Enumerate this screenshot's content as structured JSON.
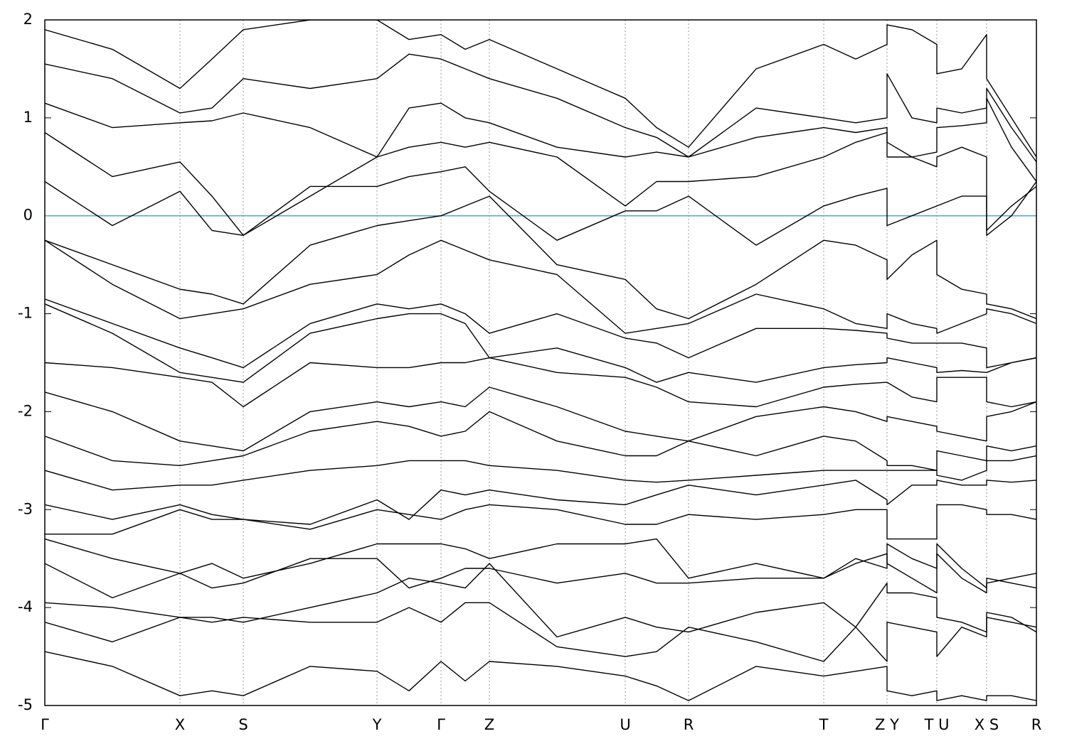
{
  "chart_data": {
    "type": "line",
    "x": [
      0,
      0.095,
      0.19,
      0.235,
      0.279,
      0.373,
      0.467,
      0.512,
      0.557,
      0.591,
      0.625,
      0.72,
      0.816,
      0.86,
      0.905,
      1.0,
      1.095,
      1.14,
      1.184,
      1.184,
      1.219,
      1.254,
      1.254,
      1.289,
      1.324,
      1.324,
      1.359,
      1.394
    ],
    "series": [
      {
        "values": [
          1.9,
          1.7,
          1.3,
          1.6,
          1.9,
          2.0,
          2.0,
          1.8,
          1.85,
          1.7,
          1.8,
          1.5,
          1.2,
          0.9,
          0.7,
          1.5,
          1.75,
          1.6,
          1.75,
          1.95,
          1.9,
          1.75,
          1.45,
          1.5,
          1.85,
          1.4,
          1.0,
          0.6
        ]
      },
      {
        "values": [
          1.55,
          1.4,
          1.05,
          1.1,
          1.4,
          1.3,
          1.4,
          1.65,
          1.6,
          1.5,
          1.4,
          1.2,
          0.9,
          0.8,
          0.6,
          1.1,
          1.0,
          0.95,
          1.0,
          1.45,
          1.0,
          0.95,
          1.1,
          1.05,
          1.1,
          1.3,
          0.9,
          0.55
        ]
      },
      {
        "values": [
          1.15,
          0.9,
          0.95,
          0.97,
          1.05,
          0.9,
          0.6,
          1.1,
          1.15,
          1.0,
          0.95,
          0.7,
          0.6,
          0.65,
          0.6,
          0.8,
          0.9,
          0.85,
          0.9,
          0.75,
          0.6,
          0.65,
          0.9,
          0.92,
          0.95,
          1.2,
          0.7,
          0.35
        ]
      },
      {
        "values": [
          0.85,
          0.4,
          0.55,
          0.2,
          -0.2,
          0.2,
          0.6,
          0.7,
          0.75,
          0.7,
          0.75,
          0.6,
          0.1,
          0.35,
          0.35,
          0.4,
          0.6,
          0.75,
          0.85,
          0.6,
          0.6,
          0.5,
          0.6,
          0.7,
          0.6,
          -0.15,
          0.1,
          0.3
        ]
      },
      {
        "values": [
          0.35,
          -0.1,
          0.25,
          -0.15,
          -0.2,
          0.3,
          0.3,
          0.4,
          0.45,
          0.5,
          0.25,
          -0.25,
          0.05,
          0.05,
          0.2,
          -0.3,
          0.1,
          0.2,
          0.28,
          -0.1,
          0.0,
          0.1,
          0.1,
          0.2,
          0.2,
          -0.2,
          0.0,
          0.35
        ]
      },
      {
        "values": [
          -0.25,
          -0.5,
          -0.75,
          -0.8,
          -0.9,
          -0.3,
          -0.1,
          -0.05,
          0.0,
          0.1,
          0.2,
          -0.5,
          -0.65,
          -0.95,
          -1.05,
          -0.7,
          -0.25,
          -0.3,
          -0.45,
          -0.65,
          -0.4,
          -0.25,
          -0.6,
          -0.75,
          -0.8,
          -0.9,
          -0.95,
          -1.05
        ]
      },
      {
        "values": [
          -0.25,
          -0.7,
          -1.05,
          -1.0,
          -0.95,
          -0.7,
          -0.6,
          -0.4,
          -0.25,
          -0.35,
          -0.45,
          -0.6,
          -1.2,
          -1.15,
          -1.1,
          -0.8,
          -0.95,
          -1.1,
          -1.15,
          -1.0,
          -1.1,
          -1.15,
          -1.2,
          -1.1,
          -1.0,
          -0.95,
          -1.0,
          -1.1
        ]
      },
      {
        "values": [
          -0.85,
          -1.1,
          -1.35,
          -1.45,
          -1.55,
          -1.1,
          -0.9,
          -0.95,
          -0.9,
          -1.0,
          -1.2,
          -1.0,
          -1.25,
          -1.3,
          -1.45,
          -1.15,
          -1.15,
          -1.17,
          -1.2,
          -1.25,
          -1.3,
          -1.3,
          -1.3,
          -1.3,
          -1.35,
          -1.55,
          -1.5,
          -1.45
        ]
      },
      {
        "values": [
          -0.9,
          -1.2,
          -1.6,
          -1.65,
          -1.7,
          -1.2,
          -1.05,
          -1.0,
          -1.0,
          -1.1,
          -1.45,
          -1.35,
          -1.55,
          -1.7,
          -1.6,
          -1.7,
          -1.55,
          -1.52,
          -1.5,
          -1.45,
          -1.5,
          -1.55,
          -1.6,
          -1.58,
          -1.6,
          -1.6,
          -1.5,
          -1.45
        ]
      },
      {
        "values": [
          -1.5,
          -1.55,
          -1.65,
          -1.7,
          -1.95,
          -1.5,
          -1.55,
          -1.55,
          -1.5,
          -1.5,
          -1.45,
          -1.6,
          -1.65,
          -1.75,
          -1.9,
          -1.95,
          -1.75,
          -1.72,
          -1.7,
          -1.7,
          -1.85,
          -1.9,
          -1.65,
          -1.65,
          -1.65,
          -1.9,
          -1.95,
          -1.9
        ]
      },
      {
        "values": [
          -1.8,
          -2.0,
          -2.3,
          -2.35,
          -2.4,
          -2.0,
          -1.9,
          -1.95,
          -1.9,
          -1.95,
          -1.75,
          -1.95,
          -2.2,
          -2.25,
          -2.3,
          -2.05,
          -1.95,
          -2.0,
          -2.1,
          -2.05,
          -2.1,
          -2.15,
          -2.2,
          -2.25,
          -2.3,
          -2.05,
          -2.0,
          -1.9
        ]
      },
      {
        "values": [
          -2.25,
          -2.5,
          -2.55,
          -2.5,
          -2.45,
          -2.2,
          -2.1,
          -2.15,
          -2.25,
          -2.2,
          -2.0,
          -2.3,
          -2.45,
          -2.45,
          -2.3,
          -2.45,
          -2.25,
          -2.3,
          -2.5,
          -2.55,
          -2.55,
          -2.6,
          -2.4,
          -2.45,
          -2.5,
          -2.35,
          -2.4,
          -2.35
        ]
      },
      {
        "values": [
          -2.6,
          -2.8,
          -2.75,
          -2.75,
          -2.7,
          -2.6,
          -2.55,
          -2.5,
          -2.5,
          -2.5,
          -2.55,
          -2.6,
          -2.7,
          -2.72,
          -2.7,
          -2.65,
          -2.6,
          -2.6,
          -2.6,
          -2.6,
          -2.6,
          -2.6,
          -2.65,
          -2.7,
          -2.6,
          -2.5,
          -2.5,
          -2.45
        ]
      },
      {
        "values": [
          -2.95,
          -3.1,
          -2.95,
          -3.05,
          -3.1,
          -3.15,
          -2.9,
          -3.1,
          -2.8,
          -2.85,
          -2.8,
          -2.9,
          -2.95,
          -2.85,
          -2.75,
          -2.85,
          -2.75,
          -2.7,
          -2.9,
          -2.95,
          -2.75,
          -2.75,
          -2.7,
          -2.75,
          -2.75,
          -2.7,
          -2.72,
          -2.7
        ]
      },
      {
        "values": [
          -3.25,
          -3.25,
          -3.0,
          -3.1,
          -3.1,
          -3.2,
          -3.0,
          -3.05,
          -3.1,
          -3.0,
          -2.95,
          -3.0,
          -3.15,
          -3.15,
          -3.05,
          -3.1,
          -3.05,
          -3.0,
          -3.0,
          -3.3,
          -3.3,
          -3.3,
          -2.95,
          -2.95,
          -3.0,
          -3.05,
          -3.05,
          -3.1
        ]
      },
      {
        "values": [
          -3.3,
          -3.5,
          -3.65,
          -3.55,
          -3.7,
          -3.55,
          -3.35,
          -3.35,
          -3.35,
          -3.4,
          -3.5,
          -3.35,
          -3.35,
          -3.3,
          -3.7,
          -3.55,
          -3.7,
          -3.5,
          -3.6,
          -3.35,
          -3.5,
          -3.6,
          -3.35,
          -3.6,
          -3.8,
          -3.75,
          -3.7,
          -3.65
        ]
      },
      {
        "values": [
          -3.55,
          -3.9,
          -3.65,
          -3.8,
          -3.75,
          -3.5,
          -3.5,
          -3.8,
          -3.7,
          -3.6,
          -3.6,
          -3.75,
          -3.65,
          -3.75,
          -3.75,
          -3.7,
          -3.7,
          -3.55,
          -3.45,
          -3.55,
          -3.7,
          -3.85,
          -3.45,
          -3.7,
          -3.85,
          -3.7,
          -3.75,
          -3.8
        ]
      },
      {
        "values": [
          -3.95,
          -4.0,
          -4.1,
          -4.1,
          -4.15,
          -4.0,
          -3.85,
          -3.7,
          -3.75,
          -3.8,
          -3.55,
          -4.3,
          -4.1,
          -4.2,
          -4.25,
          -4.05,
          -3.95,
          -4.2,
          -3.75,
          -3.85,
          -3.85,
          -3.9,
          -4.1,
          -4.15,
          -4.25,
          -4.05,
          -4.1,
          -4.25
        ]
      },
      {
        "values": [
          -4.15,
          -4.35,
          -4.1,
          -4.15,
          -4.1,
          -4.15,
          -4.15,
          -4.0,
          -4.15,
          -3.95,
          -3.95,
          -4.4,
          -4.5,
          -4.45,
          -4.2,
          -4.35,
          -4.55,
          -4.2,
          -4.55,
          -4.15,
          -4.2,
          -4.25,
          -4.5,
          -4.2,
          -4.3,
          -4.1,
          -4.15,
          -4.2
        ]
      },
      {
        "values": [
          -4.45,
          -4.6,
          -4.9,
          -4.85,
          -4.9,
          -4.6,
          -4.65,
          -4.85,
          -4.55,
          -4.75,
          -4.55,
          -4.6,
          -4.7,
          -4.8,
          -4.95,
          -4.6,
          -4.7,
          -4.65,
          -4.6,
          -4.85,
          -4.9,
          -4.85,
          -4.95,
          -4.9,
          -4.95,
          -4.9,
          -4.9,
          -4.95
        ]
      }
    ],
    "color": "#000000",
    "xlim": [
      0,
      1.394
    ],
    "xticks": [
      {
        "value": 0,
        "label": "Γ"
      },
      {
        "value": 0.19,
        "label": "X"
      },
      {
        "value": 0.279,
        "label": "S"
      },
      {
        "value": 0.467,
        "label": "Y"
      },
      {
        "value": 0.557,
        "label": "Γ"
      },
      {
        "value": 0.625,
        "label": "Z"
      },
      {
        "value": 0.816,
        "label": "U"
      },
      {
        "value": 0.905,
        "label": "R"
      },
      {
        "value": 1.095,
        "label": "T"
      },
      {
        "value": 1.184,
        "label": "Z Y"
      },
      {
        "value": 1.254,
        "label": "T U"
      },
      {
        "value": 1.324,
        "label": "X S"
      },
      {
        "value": 1.394,
        "label": "R"
      }
    ],
    "ylim": [
      -5,
      2
    ],
    "yticks": [
      2,
      1,
      0,
      -1,
      -2,
      -3,
      -4,
      -5
    ],
    "xgrid": true,
    "reference_line": {
      "y": 0,
      "color": "#5aaac8"
    }
  }
}
